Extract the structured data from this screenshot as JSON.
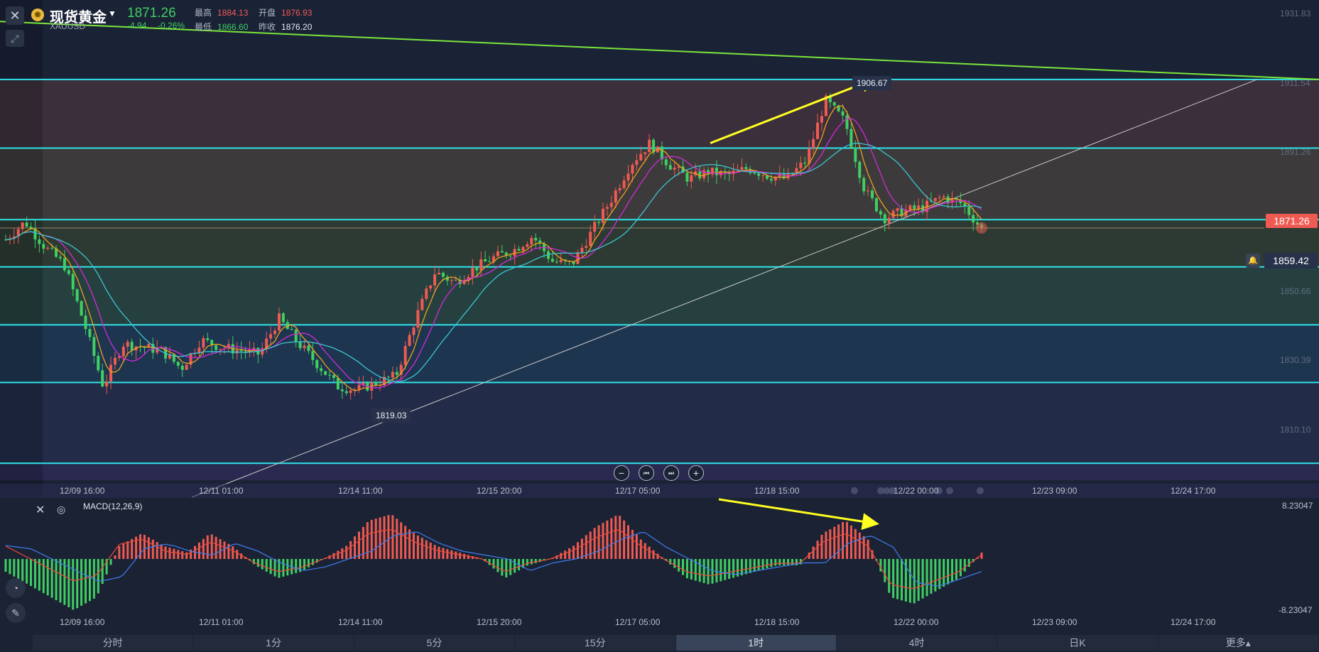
{
  "header": {
    "title": "现货黄金",
    "symbol": "XAUUSD",
    "coin_glyph": "◉",
    "price": "1871.26",
    "change": "-4.94",
    "change_pct": "-0.26%",
    "high_label": "最高",
    "high_value": "1884.13",
    "open_label": "开盘",
    "open_value": "1876.93",
    "low_label": "最低",
    "low_value": "1866.60",
    "prev_close_label": "昨收",
    "prev_close_value": "1876.20"
  },
  "toolbar": {
    "close_glyph": "✕",
    "expand_glyph": "⤢",
    "zoom_out": "−",
    "step_back": "⏮",
    "step_forward": "⏭",
    "zoom_in": "+"
  },
  "price_axis": {
    "labels": [
      "1931.83",
      "1911.54",
      "1891.26",
      "1850.66",
      "1830.39",
      "1810.10"
    ],
    "current_price_tag": "1871.26",
    "alert_price_tag": "1859.42",
    "alert_icon": "bell-icon"
  },
  "annotations": {
    "high_marker": "1906.67",
    "low_marker": "1819.03"
  },
  "time_axis": {
    "labels": [
      "12/09 16:00",
      "12/11 01:00",
      "12/14 11:00",
      "12/15 20:00",
      "12/17 05:00",
      "12/18 15:00",
      "12/22 00:00",
      "12/23 09:00",
      "12/24 17:00"
    ]
  },
  "macd": {
    "label": "MACD(12,26,9)",
    "axis_top": "8.23047",
    "axis_bottom": "-8.23047",
    "close_glyph": "✕",
    "settings_glyph": "◎"
  },
  "side_tools": [
    "◔",
    "✎",
    "〰"
  ],
  "timeframe_tabs": [
    {
      "label": "分时",
      "active": false
    },
    {
      "label": "1分",
      "active": false
    },
    {
      "label": "5分",
      "active": false
    },
    {
      "label": "15分",
      "active": false
    },
    {
      "label": "1时",
      "active": true
    },
    {
      "label": "4时",
      "active": false
    },
    {
      "label": "日K",
      "active": false
    },
    {
      "label": "更多▴",
      "active": false
    }
  ],
  "colors": {
    "bg": "#1b2233",
    "up": "#ef5b52",
    "down": "#3fcf62",
    "cyan_level": "#2ee3e8",
    "trend_green": "#7be63a",
    "arrow_yellow": "#ffff22",
    "ma_orange": "#f0a020",
    "ma_magenta": "#d22ad8",
    "ma_cyan": "#3cc4d0",
    "macd_blue": "#3d7df0",
    "macd_red": "#ef4a3a"
  },
  "chart_data": {
    "type": "candlestick",
    "price_range": [
      1800,
      1935
    ],
    "horizontal_levels": [
      1912.8,
      1893.6,
      1873.6,
      1860.4,
      1844.2,
      1828.1,
      1805.5
    ],
    "green_trendline": [
      1929.0,
      1912.8
    ],
    "support_trendline": [
      1796.0,
      1912.8
    ],
    "anchors": [
      1868,
      1873,
      1866,
      1861,
      1845,
      1827,
      1839,
      1838,
      1837,
      1832,
      1840,
      1838,
      1837,
      1836,
      1846,
      1839,
      1833,
      1827,
      1826,
      1828,
      1830,
      1846,
      1859,
      1856,
      1860,
      1863,
      1865,
      1869,
      1862,
      1861,
      1870,
      1879,
      1889,
      1895,
      1889,
      1885,
      1887,
      1886,
      1888,
      1886,
      1885,
      1890,
      1907,
      1901,
      1882,
      1874,
      1876,
      1877,
      1880,
      1878,
      1871
    ],
    "macd_hist": [
      -2,
      -4,
      -6,
      -8,
      -6,
      2,
      4,
      2,
      1,
      4,
      2,
      -1,
      -3,
      -2,
      0,
      2,
      6,
      7,
      4,
      2,
      1,
      0,
      -3,
      -1,
      0,
      2,
      5,
      7,
      3,
      0,
      -3,
      -4,
      -3,
      -2,
      -1,
      -1,
      4,
      6,
      3,
      -6,
      -7,
      -5,
      -3,
      1
    ]
  }
}
